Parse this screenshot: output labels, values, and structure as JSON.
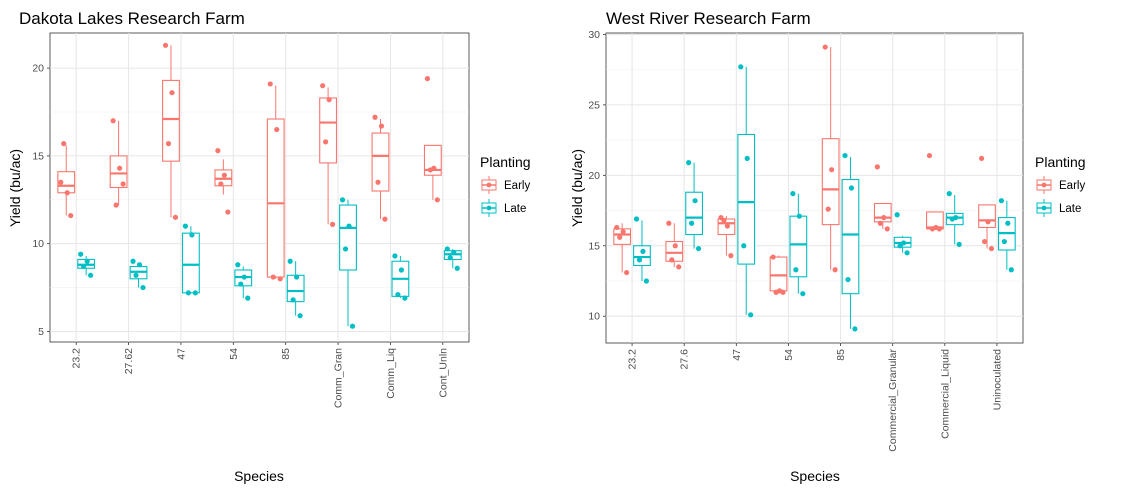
{
  "chart_data": [
    {
      "type": "boxplot",
      "title": "Dakota Lakes Research Farm",
      "xlabel": "Species",
      "ylabel": "Yield (bu/ac)",
      "ylim": [
        4.4,
        22.0
      ],
      "yticks": [
        5,
        10,
        15,
        20
      ],
      "categories": [
        "23.2",
        "27.62",
        "47",
        "54",
        "85",
        "Comm_Gran",
        "Comm_Liq",
        "Cont_Unln"
      ],
      "legend": {
        "title": "Planting",
        "entries": [
          "Early",
          "Late"
        ],
        "position": "right"
      },
      "grid": true,
      "series": [
        {
          "name": "Early",
          "color": "#F8766D",
          "boxes": [
            {
              "min": 11.6,
              "q1": 12.9,
              "median": 13.3,
              "q3": 14.1,
              "max": 15.6
            },
            {
              "min": 12.2,
              "q1": 13.2,
              "median": 14.0,
              "q3": 15.0,
              "max": 17.0
            },
            {
              "min": 11.5,
              "q1": 14.7,
              "median": 17.1,
              "q3": 19.3,
              "max": 21.3
            },
            {
              "min": 12.8,
              "q1": 13.3,
              "median": 13.7,
              "q3": 14.2,
              "max": 14.8
            },
            {
              "min": 8.0,
              "q1": 8.1,
              "median": 12.3,
              "q3": 17.1,
              "max": 19.0
            },
            {
              "min": 11.1,
              "q1": 14.6,
              "median": 16.9,
              "q3": 18.3,
              "max": 18.9
            },
            {
              "min": 11.4,
              "q1": 13.0,
              "median": 15.0,
              "q3": 16.3,
              "max": 17.1
            },
            {
              "min": 12.5,
              "q1": 13.9,
              "median": 14.2,
              "q3": 15.6,
              "max": 15.6
            }
          ],
          "points": [
            [
              13.5,
              12.9,
              15.7,
              11.6
            ],
            [
              17.0,
              14.3,
              12.2,
              13.4
            ],
            [
              21.3,
              18.6,
              15.7,
              11.5
            ],
            [
              15.3,
              13.9,
              13.4,
              11.8
            ],
            [
              19.1,
              16.5,
              8.1,
              8.0
            ],
            [
              19.0,
              18.2,
              15.8,
              11.1
            ],
            [
              17.2,
              16.7,
              13.5,
              11.4
            ],
            [
              19.4,
              14.3,
              14.2,
              12.5
            ]
          ]
        },
        {
          "name": "Late",
          "color": "#00BFC4",
          "boxes": [
            {
              "min": 8.2,
              "q1": 8.6,
              "median": 8.8,
              "q3": 9.1,
              "max": 9.3
            },
            {
              "min": 7.5,
              "q1": 8.0,
              "median": 8.4,
              "q3": 8.7,
              "max": 8.9
            },
            {
              "min": 7.2,
              "q1": 7.2,
              "median": 8.8,
              "q3": 10.6,
              "max": 11.0
            },
            {
              "min": 6.9,
              "q1": 7.6,
              "median": 8.1,
              "q3": 8.5,
              "max": 8.7
            },
            {
              "min": 5.9,
              "q1": 6.7,
              "median": 7.3,
              "q3": 8.2,
              "max": 9.0
            },
            {
              "min": 5.3,
              "q1": 8.5,
              "median": 10.9,
              "q3": 12.2,
              "max": 12.5
            },
            {
              "min": 6.9,
              "q1": 7.0,
              "median": 8.0,
              "q3": 9.0,
              "max": 9.3
            },
            {
              "min": 8.6,
              "q1": 9.1,
              "median": 9.4,
              "q3": 9.6,
              "max": 9.7
            }
          ],
          "points": [
            [
              9.4,
              9.0,
              8.7,
              8.2
            ],
            [
              9.0,
              8.8,
              8.2,
              7.5
            ],
            [
              11.0,
              10.5,
              7.2,
              7.2
            ],
            [
              8.8,
              8.1,
              7.7,
              6.9
            ],
            [
              9.0,
              8.1,
              6.8,
              5.9
            ],
            [
              12.5,
              11.0,
              9.7,
              5.3
            ],
            [
              9.3,
              8.5,
              7.1,
              6.9
            ],
            [
              9.7,
              9.5,
              9.2,
              8.6
            ]
          ]
        }
      ]
    },
    {
      "type": "boxplot",
      "title": "West River Research Farm",
      "xlabel": "Species",
      "ylabel": "Yield (bu/ac)",
      "ylim": [
        8.1,
        30.1
      ],
      "yticks": [
        10,
        15,
        20,
        25,
        30
      ],
      "categories": [
        "23.2",
        "27.6",
        "47",
        "54",
        "85",
        "Commercial_Granular",
        "Commercial_Liquid",
        "Uninoculated"
      ],
      "legend": {
        "title": "Planting",
        "entries": [
          "Early",
          "Late"
        ],
        "position": "right"
      },
      "grid": true,
      "series": [
        {
          "name": "Early",
          "color": "#F8766D",
          "boxes": [
            {
              "min": 13.1,
              "q1": 15.1,
              "median": 15.8,
              "q3": 16.2,
              "max": 16.6
            },
            {
              "min": 13.5,
              "q1": 13.9,
              "median": 14.5,
              "q3": 15.3,
              "max": 16.6
            },
            {
              "min": 14.3,
              "q1": 15.8,
              "median": 16.6,
              "q3": 16.9,
              "max": 17.1
            },
            {
              "min": 11.7,
              "q1": 11.8,
              "median": 12.9,
              "q3": 14.2,
              "max": 14.3
            },
            {
              "min": 13.3,
              "q1": 16.5,
              "median": 19.0,
              "q3": 22.6,
              "max": 29.1
            },
            {
              "min": 16.2,
              "q1": 16.7,
              "median": 17.0,
              "q3": 18.0,
              "max": 18.0
            },
            {
              "min": 16.2,
              "q1": 16.2,
              "median": 16.3,
              "q3": 17.4,
              "max": 17.4
            },
            {
              "min": 14.8,
              "q1": 16.3,
              "median": 16.8,
              "q3": 17.9,
              "max": 17.9
            }
          ],
          "points": [
            [
              16.3,
              16.0,
              15.6,
              13.1
            ],
            [
              16.6,
              15.0,
              14.0,
              13.5
            ],
            [
              17.0,
              16.4,
              16.8,
              14.3
            ],
            [
              14.2,
              11.8,
              11.7,
              11.7
            ],
            [
              29.1,
              20.4,
              17.6,
              13.3
            ],
            [
              20.6,
              17.0,
              16.6,
              16.2
            ],
            [
              21.4,
              16.3,
              16.2,
              16.2
            ],
            [
              21.2,
              16.7,
              15.3,
              14.8
            ]
          ]
        },
        {
          "name": "Late",
          "color": "#00BFC4",
          "boxes": [
            {
              "min": 12.5,
              "q1": 13.6,
              "median": 14.2,
              "q3": 15.0,
              "max": 16.8
            },
            {
              "min": 14.8,
              "q1": 15.8,
              "median": 17.0,
              "q3": 18.8,
              "max": 20.9
            },
            {
              "min": 10.1,
              "q1": 13.7,
              "median": 18.1,
              "q3": 22.9,
              "max": 27.7
            },
            {
              "min": 11.6,
              "q1": 12.8,
              "median": 15.1,
              "q3": 17.1,
              "max": 18.7
            },
            {
              "min": 9.1,
              "q1": 11.6,
              "median": 15.8,
              "q3": 19.7,
              "max": 21.3
            },
            {
              "min": 14.5,
              "q1": 14.9,
              "median": 15.2,
              "q3": 15.6,
              "max": 15.7
            },
            {
              "min": 15.1,
              "q1": 16.5,
              "median": 17.0,
              "q3": 17.3,
              "max": 18.6
            },
            {
              "min": 13.3,
              "q1": 14.7,
              "median": 15.9,
              "q3": 17.0,
              "max": 18.2
            }
          ],
          "points": [
            [
              16.9,
              14.6,
              14.0,
              12.5
            ],
            [
              20.9,
              18.2,
              16.6,
              14.8
            ],
            [
              27.7,
              21.2,
              15.0,
              10.1
            ],
            [
              18.7,
              17.1,
              13.3,
              11.6
            ],
            [
              21.4,
              19.1,
              12.6,
              9.1
            ],
            [
              17.2,
              15.2,
              15.0,
              14.5
            ],
            [
              18.7,
              17.0,
              16.9,
              15.1
            ],
            [
              18.2,
              16.6,
              15.3,
              13.3
            ]
          ]
        }
      ]
    }
  ]
}
